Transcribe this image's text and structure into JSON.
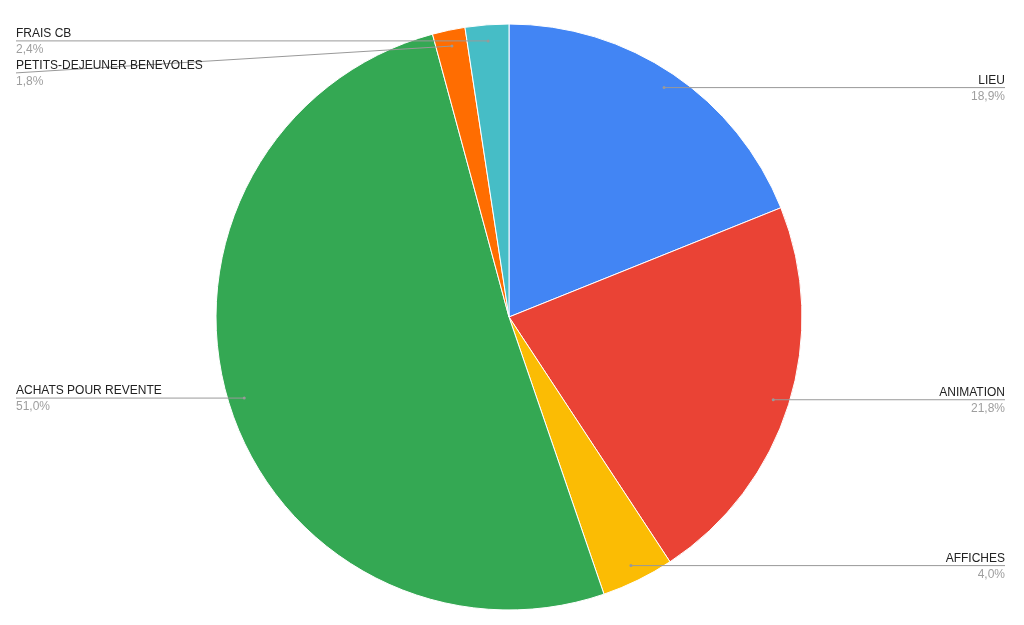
{
  "chart_data": {
    "type": "pie",
    "categories": [
      "LIEU",
      "ANIMATION",
      "AFFICHES",
      "ACHATS POUR REVENTE",
      "PETITS-DEJEUNER BENEVOLES",
      "FRAIS CB"
    ],
    "values": [
      18.9,
      21.8,
      4.0,
      51.0,
      1.8,
      2.4
    ],
    "value_labels": [
      "18,9%",
      "21,8%",
      "4,0%",
      "51,0%",
      "1,8%",
      "2,4%"
    ],
    "colors": [
      "#4285f4",
      "#ea4335",
      "#fbbc04",
      "#34a853",
      "#ff6d01",
      "#46bdc6"
    ]
  }
}
